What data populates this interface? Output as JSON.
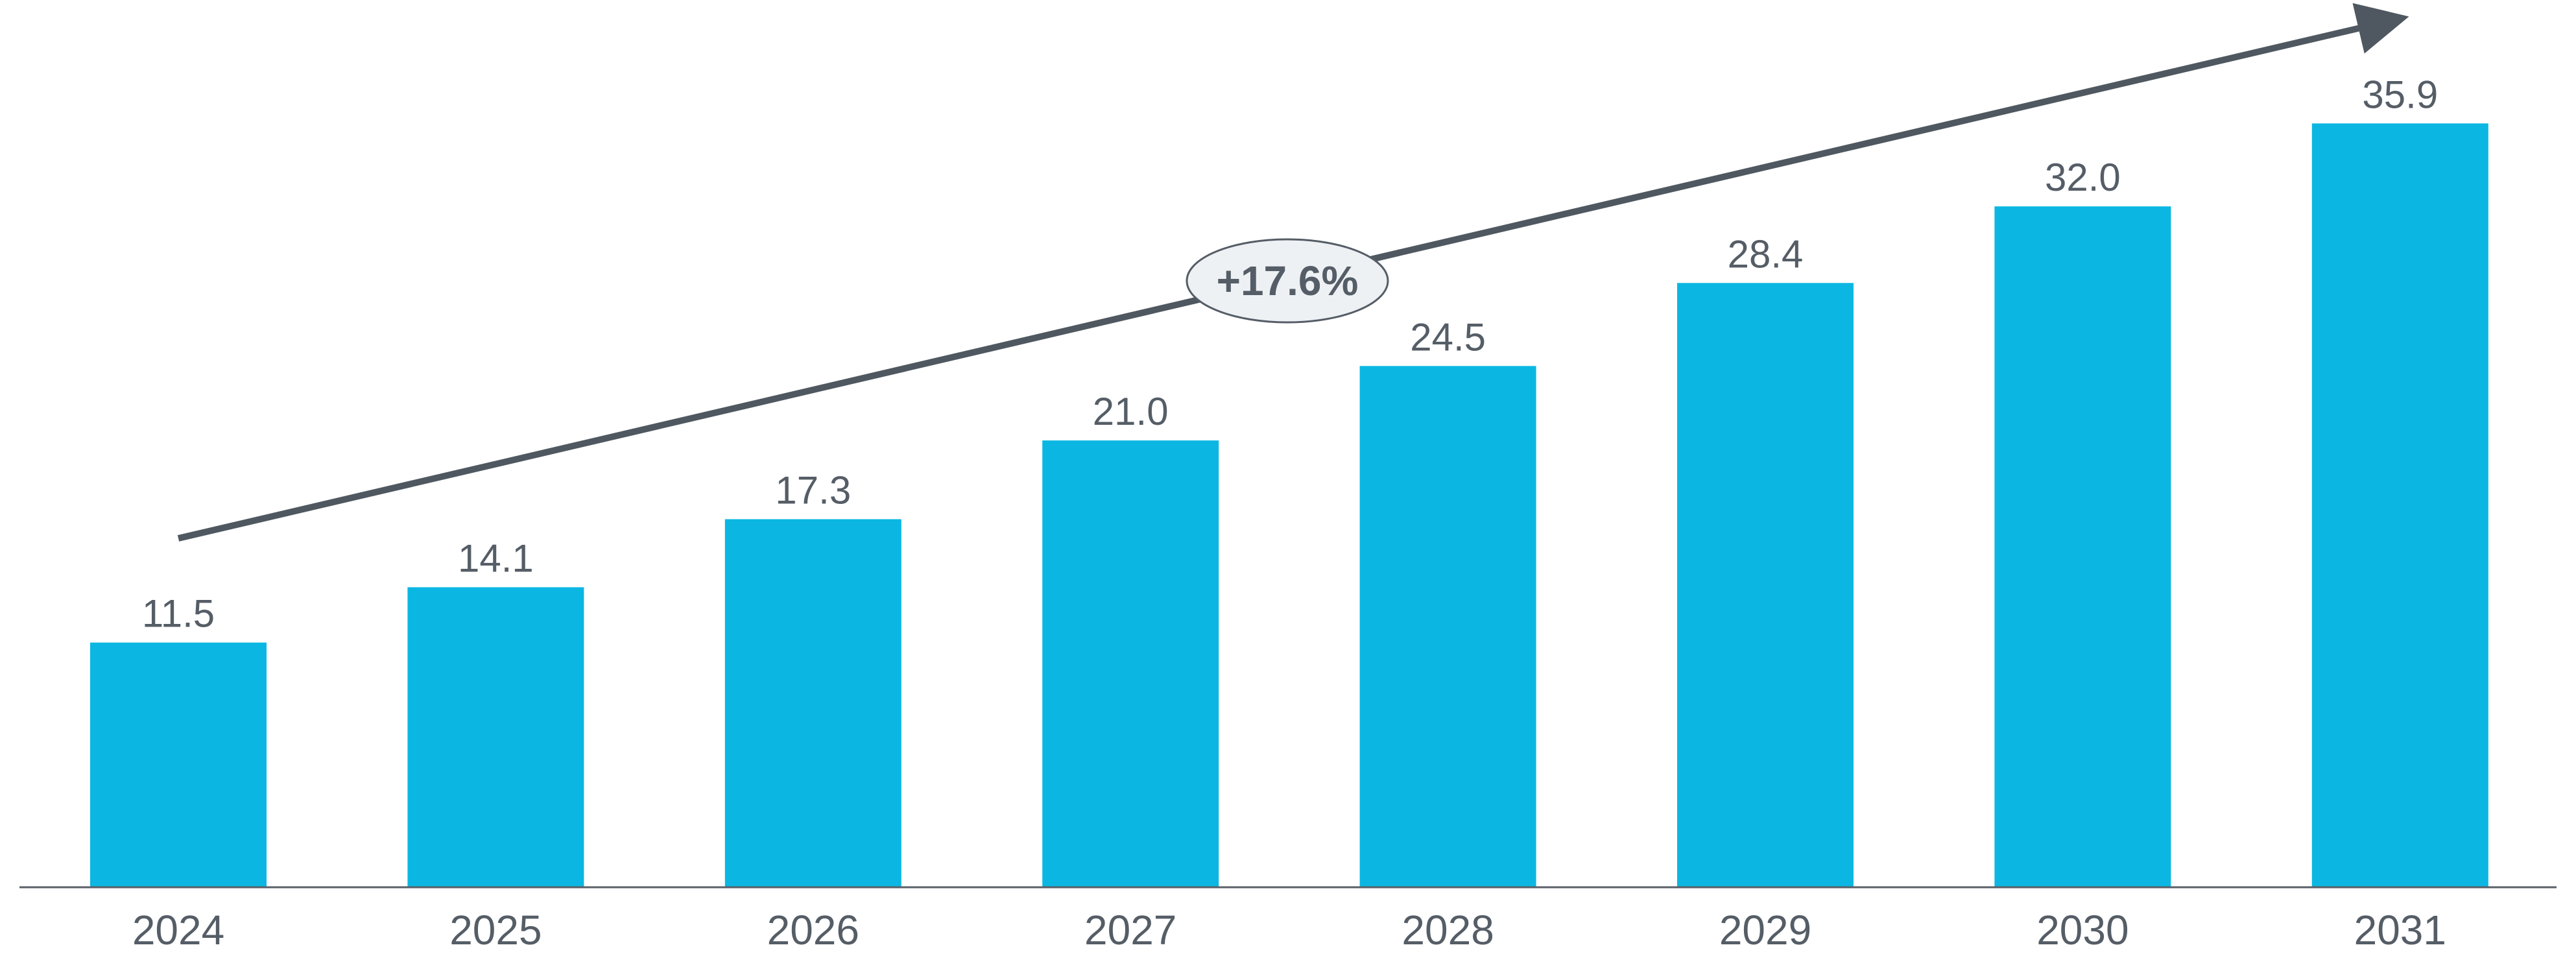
{
  "chart_data": {
    "type": "bar",
    "categories": [
      "2024",
      "2025",
      "2026",
      "2027",
      "2028",
      "2029",
      "2030",
      "2031"
    ],
    "values": [
      11.5,
      14.1,
      17.3,
      21.0,
      24.5,
      28.4,
      32.0,
      35.9
    ],
    "value_labels": [
      "11.5",
      "14.1",
      "17.3",
      "21.0",
      "24.5",
      "28.4",
      "32.0",
      "35.9"
    ],
    "title": "",
    "xlabel": "",
    "ylabel": "",
    "ylim": [
      0,
      41.7
    ],
    "grid": false,
    "legend": "none",
    "annotation": {
      "type": "trend-arrow",
      "label": "+17.6%"
    }
  },
  "colors": {
    "bar": "#0bb7e2",
    "text": "#555d66",
    "axis": "#5a6068",
    "arrow": "#4f5860",
    "badge_fill": "#eef1f4",
    "badge_stroke": "#555d66"
  }
}
